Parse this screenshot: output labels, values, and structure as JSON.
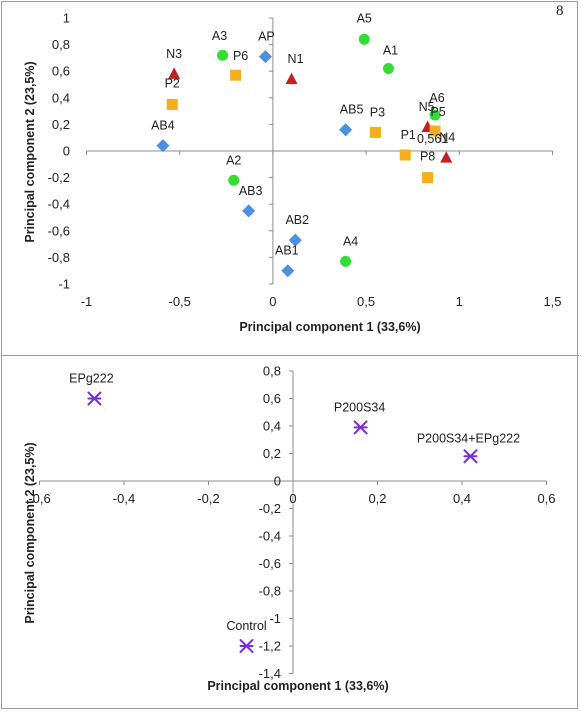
{
  "page_number": "8",
  "colors": {
    "A": "#33dd33",
    "AB": "#4a8fe0",
    "N": "#c42020",
    "P": "#f5ae1c",
    "treatment": "#7b2fd6",
    "axis": "#8c8c8c"
  },
  "chart_data": [
    {
      "type": "scatter",
      "title": "",
      "xlabel": "Principal component 1 (33,6%)",
      "ylabel": "Principal component 2 (23,5%)",
      "xlim": [
        -1,
        1.5
      ],
      "ylim": [
        -1,
        1
      ],
      "x_ticks": [
        "-1",
        "-0,5",
        "0",
        "0,5",
        "1",
        "1,5"
      ],
      "y_ticks": [
        "1",
        "0,8",
        "0,6",
        "0,4",
        "0,2",
        "0",
        "-0,2",
        "-0,4",
        "-0,6",
        "-0,8",
        "-1"
      ],
      "grid": false,
      "legend": "none",
      "series": [
        {
          "group": "A",
          "marker": "circle",
          "points": [
            {
              "label": "A5",
              "x": 0.49,
              "y": 0.84
            },
            {
              "label": "A1",
              "x": 0.62,
              "y": 0.62
            },
            {
              "label": "A3",
              "x": -0.27,
              "y": 0.72
            },
            {
              "label": "A6",
              "x": 0.87,
              "y": 0.27
            },
            {
              "label": "A2",
              "x": -0.21,
              "y": -0.22
            },
            {
              "label": "A4",
              "x": 0.39,
              "y": -0.83
            }
          ]
        },
        {
          "group": "AB",
          "marker": "diamond",
          "points": [
            {
              "label": "AP",
              "x": -0.04,
              "y": 0.71
            },
            {
              "label": "AB5",
              "x": 0.39,
              "y": 0.16
            },
            {
              "label": "AB4",
              "x": -0.59,
              "y": 0.04
            },
            {
              "label": "AB3",
              "x": -0.13,
              "y": -0.45
            },
            {
              "label": "AB2",
              "x": 0.12,
              "y": -0.67
            },
            {
              "label": "AB1",
              "x": 0.08,
              "y": -0.9
            }
          ]
        },
        {
          "group": "N",
          "marker": "triangle",
          "points": [
            {
              "label": "N3",
              "x": -0.53,
              "y": 0.58
            },
            {
              "label": "N1",
              "x": 0.1,
              "y": 0.54
            },
            {
              "label": "N5",
              "x": 0.83,
              "y": 0.18
            },
            {
              "label": "N4",
              "x": 0.93,
              "y": -0.05
            }
          ]
        },
        {
          "group": "P",
          "marker": "square",
          "points": [
            {
              "label": "P6",
              "x": -0.2,
              "y": 0.57
            },
            {
              "label": "P2",
              "x": -0.54,
              "y": 0.35
            },
            {
              "label": "P3",
              "x": 0.55,
              "y": 0.14
            },
            {
              "label": "P1",
              "x": 0.71,
              "y": -0.03
            },
            {
              "label": "P5",
              "x": 0.87,
              "y": 0.15
            },
            {
              "label": "P8",
              "x": 0.83,
              "y": -0.2
            }
          ]
        }
      ],
      "annotations": [
        "0,561"
      ]
    },
    {
      "type": "scatter",
      "title": "",
      "xlabel": "Principal component 1 (33,6%)",
      "ylabel": "Principal component 2 (23,5%)",
      "xlim": [
        -0.6,
        0.6
      ],
      "ylim": [
        -1.4,
        0.8
      ],
      "x_ticks": [
        "-0,6",
        "-0,4",
        "-0,2",
        "0",
        "0,2",
        "0,4",
        "0,6"
      ],
      "y_ticks": [
        "0,8",
        "0,6",
        "0,4",
        "0,2",
        "0",
        "-0,2",
        "-0,4",
        "-0,6",
        "-0,8",
        "-1",
        "-1,2",
        "-1,4"
      ],
      "grid": false,
      "legend": "none",
      "series": [
        {
          "group": "treatment",
          "marker": "asterisk",
          "points": [
            {
              "label": "EPg222",
              "x": -0.47,
              "y": 0.6
            },
            {
              "label": "P200S34",
              "x": 0.16,
              "y": 0.39
            },
            {
              "label": "P200S34+EPg222",
              "x": 0.42,
              "y": 0.18
            },
            {
              "label": "Control",
              "x": -0.11,
              "y": -1.2
            }
          ]
        }
      ],
      "annotations": []
    }
  ]
}
